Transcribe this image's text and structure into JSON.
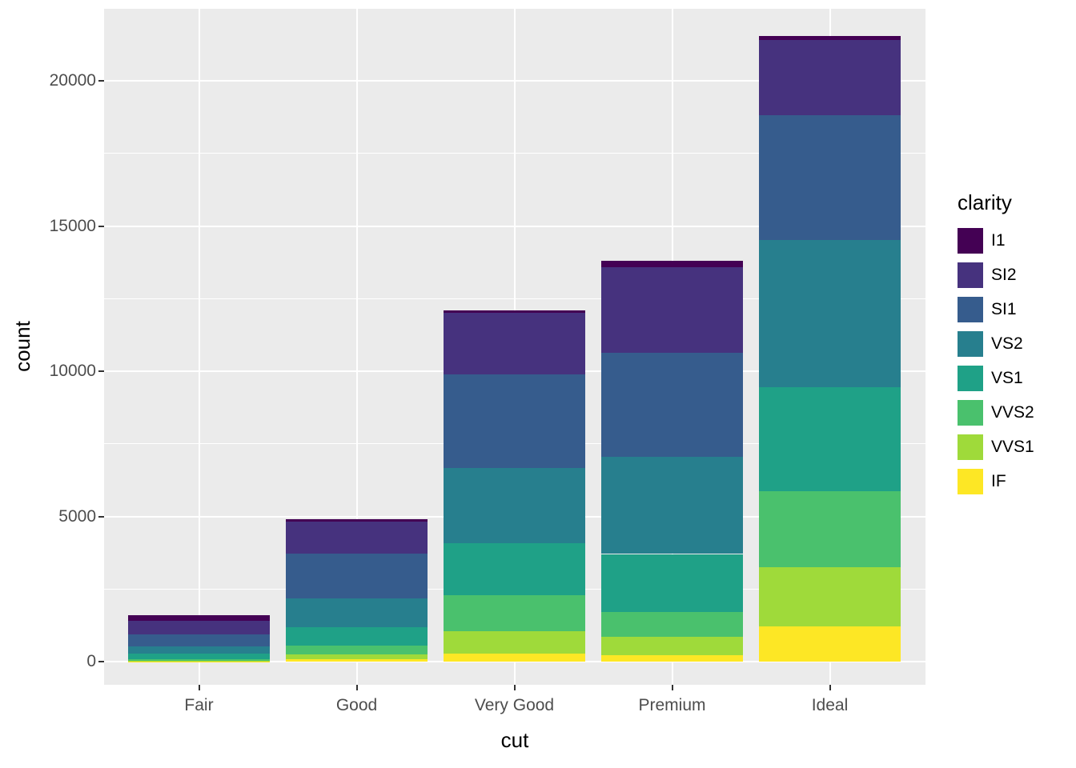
{
  "chart_data": {
    "type": "bar",
    "stacked": true,
    "title": "",
    "xlabel": "cut",
    "ylabel": "count",
    "legend_title": "clarity",
    "legend_position": "right",
    "categories": [
      "Fair",
      "Good",
      "Very Good",
      "Premium",
      "Ideal"
    ],
    "series": [
      {
        "name": "I1",
        "color": "#440154",
        "values": [
          210,
          96,
          84,
          205,
          146
        ]
      },
      {
        "name": "SI2",
        "color": "#46327E",
        "values": [
          466,
          1081,
          2100,
          2949,
          2598
        ]
      },
      {
        "name": "SI1",
        "color": "#365C8D",
        "values": [
          408,
          1560,
          3240,
          3575,
          4282
        ]
      },
      {
        "name": "VS2",
        "color": "#277F8E",
        "values": [
          261,
          978,
          2591,
          3357,
          5071
        ]
      },
      {
        "name": "VS1",
        "color": "#1FA187",
        "values": [
          170,
          648,
          1775,
          1989,
          3589
        ]
      },
      {
        "name": "VVS2",
        "color": "#4AC16D",
        "values": [
          69,
          286,
          1235,
          870,
          2606
        ]
      },
      {
        "name": "VVS1",
        "color": "#9FDA3A",
        "values": [
          17,
          186,
          789,
          616,
          2047
        ]
      },
      {
        "name": "IF",
        "color": "#FDE725",
        "values": [
          9,
          71,
          268,
          230,
          1212
        ]
      }
    ],
    "totals": [
      1610,
      4906,
      12082,
      13791,
      21551
    ],
    "y_ticks": [
      0,
      5000,
      10000,
      15000,
      20000
    ],
    "y_tick_labels": [
      "0",
      "5000",
      "10000",
      "15000",
      "20000"
    ],
    "y_minor_ticks": [
      2500,
      7500,
      12500,
      17500
    ],
    "ylim": [
      -1080,
      22630
    ],
    "grid": true,
    "panel_background": "#EBEBEB",
    "grid_color": "#FFFFFF",
    "axis_text_color": "#4D4D4D"
  }
}
